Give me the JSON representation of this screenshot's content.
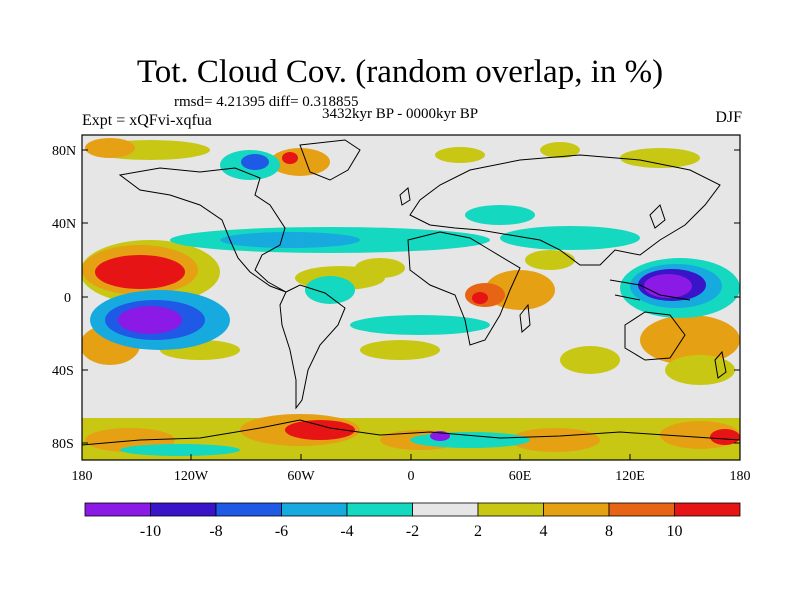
{
  "title": "Tot. Cloud Cov. (random overlap, in %)",
  "stats": "rmsd= 4.21395 diff= 0.318855",
  "experiment": "Expt = xQFvi-xqfua",
  "period": "3432kyr BP - 0000kyr BP",
  "season": "DJF",
  "lat_ticks": [
    "80N",
    "40N",
    "0",
    "40S",
    "80S"
  ],
  "lon_ticks": [
    "180",
    "120W",
    "60W",
    "0",
    "60E",
    "120E",
    "180"
  ],
  "colorbar": {
    "colors": [
      "#8b1ae6",
      "#3a14c8",
      "#1e5ae6",
      "#16aade",
      "#14d8c0",
      "#e6e6e6",
      "#c8c814",
      "#e6a014",
      "#e66414",
      "#e61414"
    ],
    "labels": [
      "-10",
      "-8",
      "-6",
      "-4",
      "-2",
      "2",
      "4",
      "8",
      "10"
    ]
  }
}
